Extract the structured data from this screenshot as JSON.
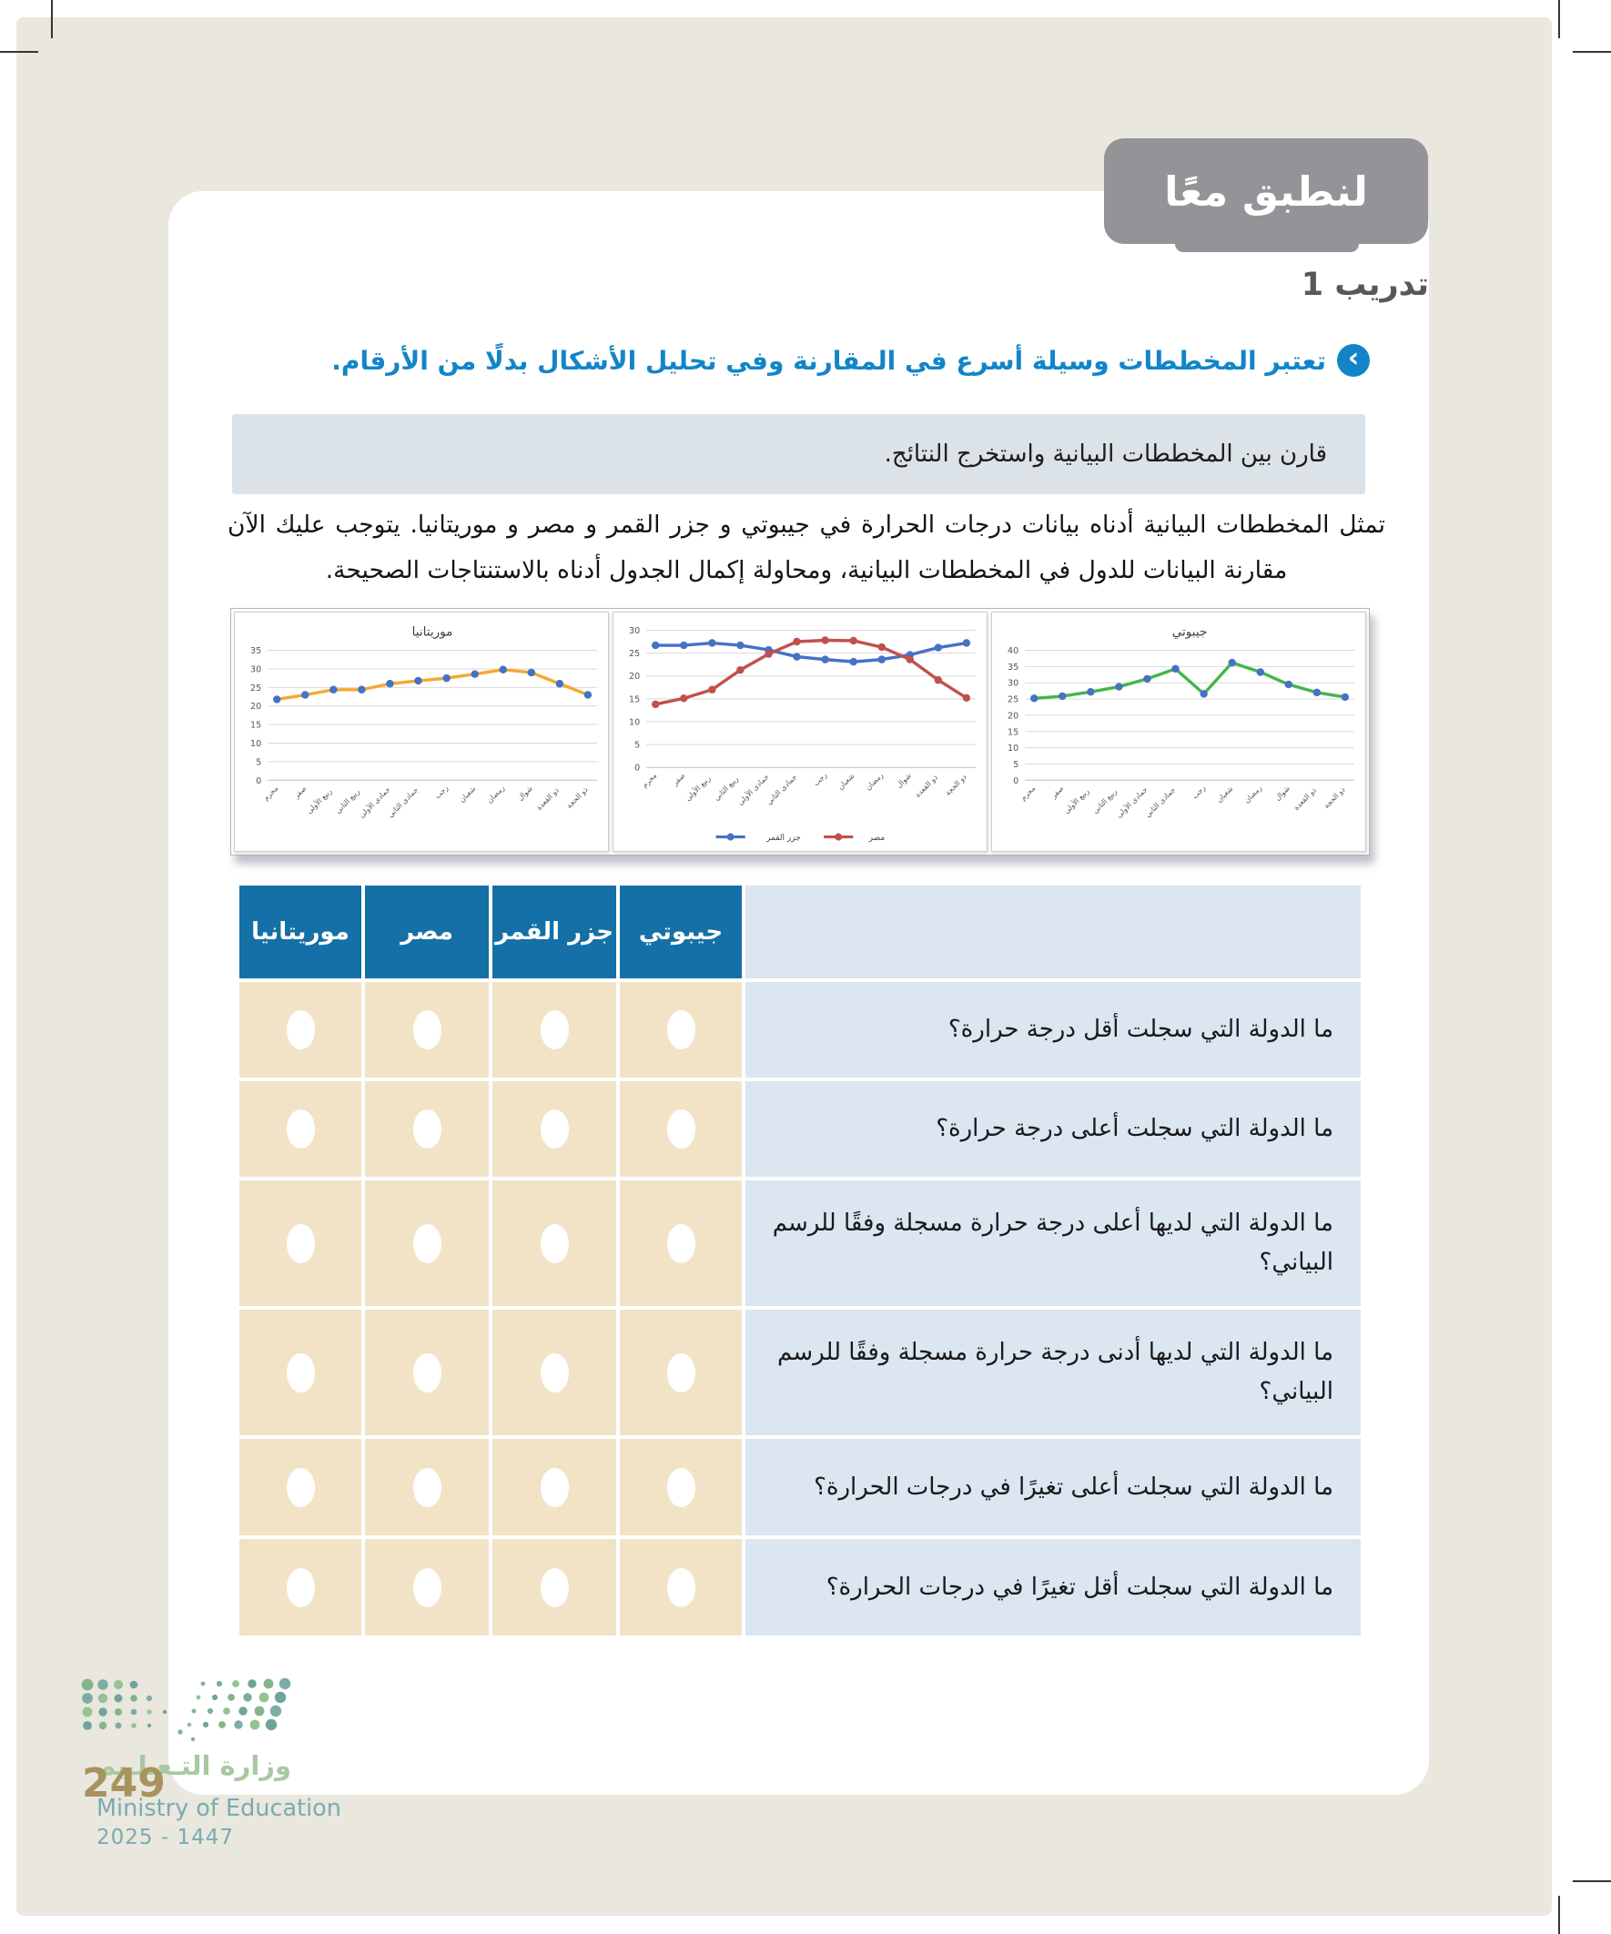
{
  "page": {
    "badge_title": "لنطبق معًا",
    "exercise_label": "تدريب 1",
    "lead": "تعتبر المخططات وسيلة أسرع في المقارنة وفي تحليل الأشكال بدلًا من الأرقام.",
    "instruction": "قارن بين المخططات البيانية واستخرج النتائج.",
    "paragraph": "تمثل المخططات البيانية أدناه بيانات درجات الحرارة في جيبوتي و جزر القمر و مصر و موريتانيا. يتوجب عليك الآن مقارنة البيانات للدول في المخططات البيانية، ومحاولة إكمال الجدول أدناه بالاستنتاجات الصحيحة."
  },
  "colors": {
    "accent_blue": "#1285c8",
    "table_header_blue": "#1470a7",
    "question_cell_blue": "#dbe6f1",
    "answer_cell_beige": "#f2e3c7",
    "instruction_box": "#dbe2e8",
    "badge_gray": "#929497",
    "page_frame_beige": "#e9e7de",
    "series_orange": "#f3a932",
    "series_blue": "#4472c4",
    "series_red": "#c0504d",
    "series_green": "#43b649"
  },
  "chart_data": [
    {
      "type": "line",
      "title": "موريتانيا",
      "categories": [
        "محرم",
        "صفر",
        "ربيع الأولى",
        "ربيع الثاني",
        "جمادى الأولى",
        "جمادى الثاني",
        "رجب",
        "شعبان",
        "رمضان",
        "شوال",
        "ذو القعدة",
        "ذو الحجة"
      ],
      "series": [
        {
          "name": "موريتانيا",
          "line_color": "#f3a932",
          "marker_color": "#4472c4",
          "values": [
            21.8,
            23,
            24.4,
            24.4,
            26,
            26.8,
            27.5,
            28.6,
            29.8,
            29,
            26,
            23
          ]
        }
      ],
      "xlabel": "",
      "ylabel": "",
      "ylim": [
        0,
        35
      ],
      "ystep": 5,
      "grid": true,
      "legend": false
    },
    {
      "type": "line",
      "title": "",
      "categories": [
        "محرم",
        "صفر",
        "ربيع الأولى",
        "ربيع الثاني",
        "جمادى الأولى",
        "جمادى الثاني",
        "رجب",
        "شعبان",
        "رمضان",
        "شوال",
        "ذو القعدة",
        "ذو الحجة"
      ],
      "series": [
        {
          "name": "جزر القمر",
          "line_color": "#4472c4",
          "marker_color": "#4472c4",
          "values": [
            26.7,
            26.7,
            27.2,
            26.7,
            25.7,
            24.2,
            23.6,
            23.1,
            23.6,
            24.6,
            26.2,
            27.2
          ]
        },
        {
          "name": "مصر",
          "line_color": "#c0504d",
          "marker_color": "#c0504d",
          "values": [
            13.8,
            15.1,
            17,
            21.3,
            24.8,
            27.5,
            27.8,
            27.7,
            26.3,
            23.6,
            19.1,
            15.2
          ]
        }
      ],
      "xlabel": "",
      "ylabel": "",
      "ylim": [
        0,
        30
      ],
      "ystep": 5,
      "grid": true,
      "legend": true,
      "legend_position": "bottom"
    },
    {
      "type": "line",
      "title": "جيبوتي",
      "categories": [
        "محرم",
        "صفر",
        "ربيع الأولى",
        "ربيع الثاني",
        "جمادى الأولى",
        "جمادى الثاني",
        "رجب",
        "شعبان",
        "رمضان",
        "شوال",
        "ذو القعدة",
        "ذو الحجة"
      ],
      "series": [
        {
          "name": "جيبوتي",
          "line_color": "#43b649",
          "marker_color": "#4472c4",
          "values": [
            25.2,
            25.9,
            27.2,
            28.8,
            31.2,
            34.3,
            26.6,
            36.2,
            33.3,
            29.5,
            27,
            25.6
          ]
        }
      ],
      "xlabel": "",
      "ylabel": "",
      "ylim": [
        0,
        40
      ],
      "ystep": 5,
      "grid": true,
      "legend": false
    }
  ],
  "table": {
    "headers": [
      "جيبوتي",
      "جزر القمر",
      "مصر",
      "موريتانيا"
    ],
    "rows": [
      {
        "question": "ما الدولة التي سجلت أقل درجة حرارة؟"
      },
      {
        "question": "ما الدولة التي سجلت أعلى درجة حرارة؟"
      },
      {
        "question": "ما الدولة التي لديها أعلى درجة حرارة مسجلة وفقًا للرسم البياني؟"
      },
      {
        "question": "ما الدولة التي لديها أدنى درجة حرارة مسجلة وفقًا للرسم البياني؟"
      },
      {
        "question": "ما الدولة التي سجلت أعلى تغيرًا في درجات الحرارة؟"
      },
      {
        "question": "ما الدولة التي سجلت أقل تغيرًا في درجات الحرارة؟"
      }
    ]
  },
  "footer": {
    "page_number": "249",
    "ministry_ar": "وزارة التـعـلـيم",
    "ministry_en": "Ministry of Education",
    "year": "2025 - 1447"
  }
}
